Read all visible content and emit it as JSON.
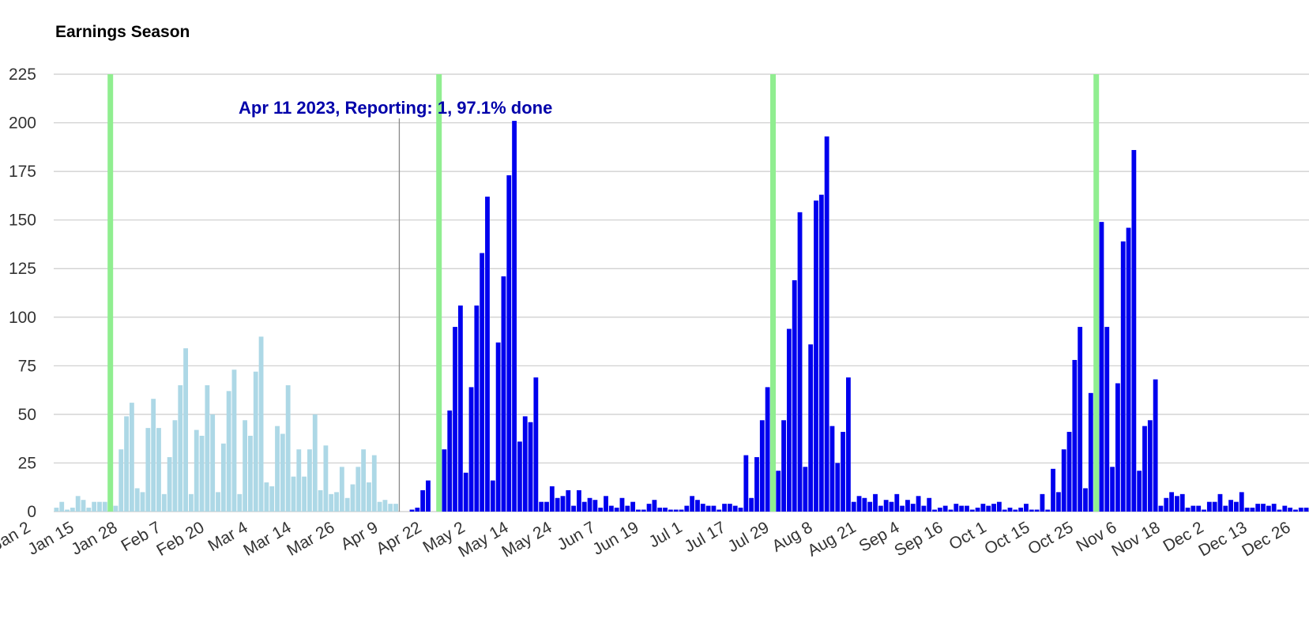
{
  "chart_data": {
    "type": "bar",
    "title": "Earnings Season",
    "xlabel": "",
    "ylabel": "",
    "ylim": [
      0,
      225
    ],
    "y_ticks": [
      0,
      25,
      50,
      75,
      100,
      125,
      150,
      175,
      200,
      225
    ],
    "x_tick_labels": [
      "Jan 2",
      "Jan 15",
      "Jan 28",
      "Feb 7",
      "Feb 20",
      "Mar 4",
      "Mar 14",
      "Mar 26",
      "Apr 9",
      "Apr 22",
      "May 2",
      "May 14",
      "May 24",
      "Jun 7",
      "Jun 19",
      "Jul 1",
      "Jul 17",
      "Jul 29",
      "Aug 8",
      "Aug 21",
      "Sep 4",
      "Sep 16",
      "Oct 1",
      "Oct 15",
      "Oct 25",
      "Nov 6",
      "Nov 18",
      "Dec 2",
      "Dec 13",
      "Dec 26"
    ],
    "grid": true,
    "legend": "none",
    "series": [
      {
        "values": [
          2,
          5,
          1,
          2,
          8,
          6,
          2,
          5,
          5,
          5,
          5,
          3,
          32,
          49,
          56,
          12,
          10,
          43,
          58,
          43,
          9,
          28,
          47,
          65,
          84,
          9,
          42,
          39,
          65,
          50,
          10,
          35,
          62,
          73,
          9,
          47,
          39,
          72,
          90,
          15,
          13,
          44,
          40,
          65,
          18,
          32,
          18,
          32,
          50,
          11,
          34,
          9,
          10,
          23,
          7,
          14,
          23,
          32,
          15,
          29,
          5,
          6,
          4,
          4,
          0,
          0,
          1,
          2,
          11,
          16,
          0,
          17,
          32,
          52,
          95,
          106,
          20,
          64,
          106,
          133,
          162,
          16,
          87,
          121,
          173,
          201,
          36,
          49,
          46,
          69,
          5,
          5,
          13,
          7,
          8,
          11,
          3,
          11,
          5,
          7,
          6,
          2,
          8,
          3,
          2,
          7,
          3,
          5,
          1,
          1,
          4,
          6,
          2,
          2,
          1,
          1,
          1,
          3,
          8,
          6,
          4,
          3,
          3,
          1,
          4,
          4,
          3,
          2,
          29,
          7,
          28,
          47,
          64,
          92,
          21,
          47,
          94,
          119,
          154,
          23,
          86,
          160,
          163,
          193,
          44,
          25,
          41,
          69,
          5,
          8,
          7,
          5,
          9,
          3,
          6,
          5,
          9,
          3,
          6,
          4,
          8,
          3,
          7,
          1,
          2,
          3,
          1,
          4,
          3,
          3,
          1,
          2,
          4,
          3,
          4,
          5,
          1,
          2,
          1,
          2,
          4,
          1,
          1,
          9,
          1,
          22,
          10,
          32,
          41,
          78,
          95,
          12,
          61,
          83,
          149,
          95,
          23,
          66,
          139,
          146,
          186,
          21,
          44,
          47,
          68,
          3,
          7,
          10,
          8,
          9,
          2,
          3,
          3,
          1,
          5,
          5,
          9,
          3,
          6,
          5,
          10,
          2,
          2,
          4,
          4,
          3,
          4,
          1,
          3,
          2,
          1,
          2,
          2
        ]
      }
    ],
    "reported_count": 64,
    "colors": {
      "reported": "#add8e6",
      "upcoming": "#0000ee",
      "season_marker": "#90ee90",
      "current_line": "#888888",
      "gridline": "#cccccc",
      "annotation": "#0000aa"
    },
    "season_start_bar_indices": [
      10,
      71,
      133,
      193
    ],
    "current_date_after_bar_index": 63,
    "annotation": "Apr 11 2023, Reporting: 1, 97.1% done"
  }
}
